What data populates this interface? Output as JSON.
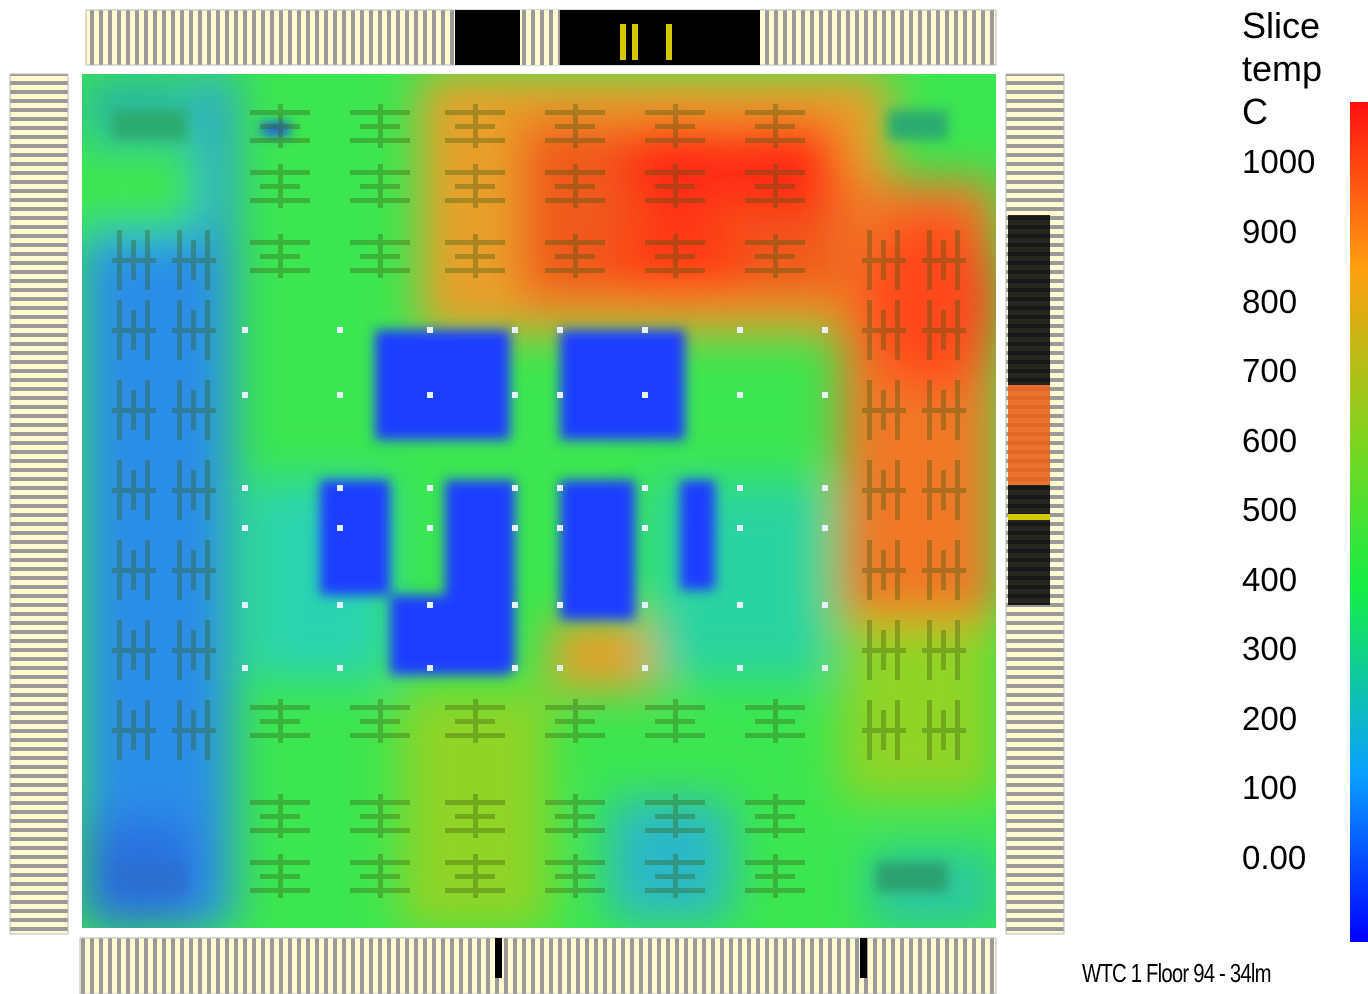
{
  "legend": {
    "title_lines": [
      "Slice",
      "temp",
      "C"
    ],
    "ticks": [
      "1000",
      "900",
      "800",
      "700",
      "600",
      "500",
      "400",
      "300",
      "200",
      "100",
      "0.00"
    ],
    "gradient_colors": [
      "#0000ff",
      "#0aa0ff",
      "#14ee46",
      "#7fd41e",
      "#ffa010",
      "#ff1010"
    ]
  },
  "caption": "WTC 1 Floor 94 - 34lm",
  "colors": {
    "hot": "#ff3a1e",
    "warm": "#f08c28",
    "mild": "#a8d428",
    "ambient": "#3ce650",
    "cool": "#2ab8c8",
    "cold": "#2f6fe8",
    "coldest": "#1e3cff",
    "column_strip": "#e8e8e8",
    "column_fill": "#fffad0"
  }
}
